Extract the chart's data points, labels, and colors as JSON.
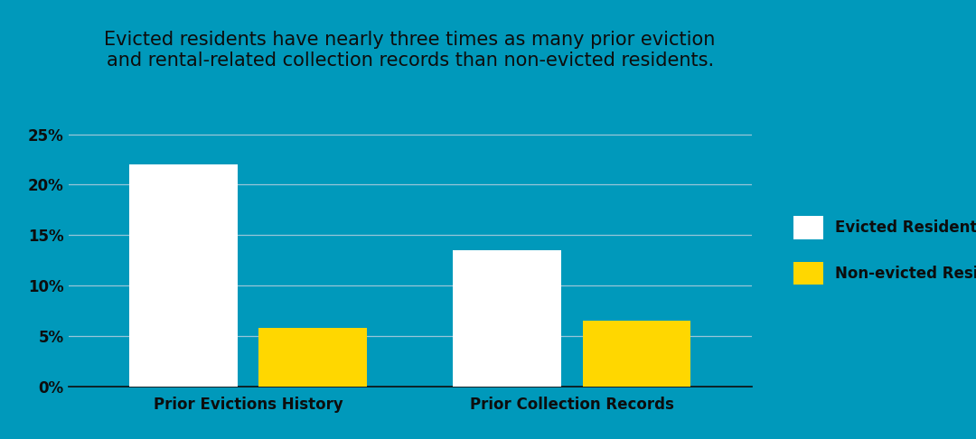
{
  "title": "Evicted residents have nearly three times as many prior eviction\nand rental-related collection records than non-evicted residents.",
  "categories": [
    "Prior Evictions History",
    "Prior Collection Records"
  ],
  "evicted_values": [
    0.22,
    0.135
  ],
  "non_evicted_values": [
    0.058,
    0.065
  ],
  "evicted_color": "#FFFFFF",
  "non_evicted_color": "#FFD700",
  "background_color": "#0099BB",
  "text_color": "#0D0D0D",
  "grid_color": "#AACCDD",
  "bar_width": 0.12,
  "group_positions": [
    0.22,
    0.58
  ],
  "ylim": [
    0,
    0.27
  ],
  "yticks": [
    0.0,
    0.05,
    0.1,
    0.15,
    0.2,
    0.25
  ],
  "ytick_labels": [
    "0%",
    "5%",
    "10%",
    "15%",
    "20%",
    "25%"
  ],
  "legend_labels": [
    "Evicted Residents",
    "Non-evicted Residents"
  ],
  "title_fontsize": 15,
  "tick_fontsize": 12,
  "legend_fontsize": 12,
  "xlabel_fontsize": 12
}
